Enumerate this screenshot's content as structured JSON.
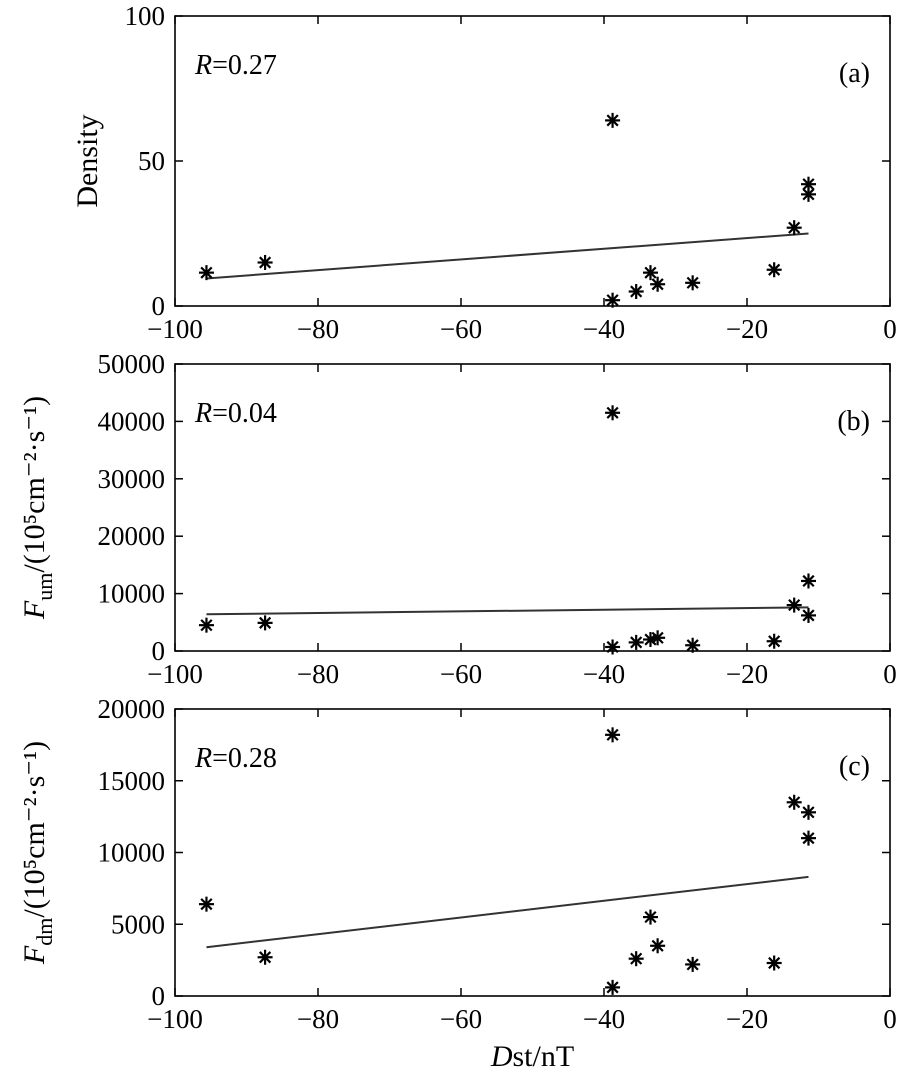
{
  "chart_data": [
    {
      "type": "scatter",
      "panel_label": "(a)",
      "r_label": "R",
      "r_value": "=0.27",
      "ylabel": "Density",
      "ylabel_sub": "",
      "ylabel_rest": "",
      "xlim": [
        -100,
        0
      ],
      "ylim": [
        0,
        100
      ],
      "xticks": [
        -100,
        -80,
        -60,
        -40,
        -20,
        0
      ],
      "yticks": [
        0,
        50,
        100
      ],
      "points": [
        [
          -95.6,
          11.5
        ],
        [
          -87.4,
          15.0
        ],
        [
          -38.8,
          64.0
        ],
        [
          -38.8,
          2.0
        ],
        [
          -35.5,
          5.0
        ],
        [
          -33.5,
          11.5
        ],
        [
          -32.5,
          7.5
        ],
        [
          -27.6,
          8.0
        ],
        [
          -16.2,
          12.5
        ],
        [
          -13.4,
          27.0
        ],
        [
          -11.4,
          42.0
        ],
        [
          -11.4,
          38.5
        ]
      ],
      "fit": {
        "x": [
          -95.6,
          -11.4
        ],
        "y": [
          9.5,
          25.0
        ]
      }
    },
    {
      "type": "scatter",
      "panel_label": "(b)",
      "r_label": "R",
      "r_value": "=0.04",
      "ylabel": "F",
      "ylabel_sub": "um",
      "ylabel_rest": "/(10⁵cm⁻²·s⁻¹)",
      "xlim": [
        -100,
        0
      ],
      "ylim": [
        0,
        50000
      ],
      "xticks": [
        -100,
        -80,
        -60,
        -40,
        -20,
        0
      ],
      "yticks": [
        0,
        10000,
        20000,
        30000,
        40000,
        50000
      ],
      "points": [
        [
          -95.6,
          4500
        ],
        [
          -87.4,
          4900
        ],
        [
          -38.8,
          41500
        ],
        [
          -38.8,
          700
        ],
        [
          -35.5,
          1500
        ],
        [
          -33.5,
          2000
        ],
        [
          -32.5,
          2300
        ],
        [
          -27.6,
          1000
        ],
        [
          -16.2,
          1700
        ],
        [
          -13.4,
          8000
        ],
        [
          -11.4,
          12200
        ],
        [
          -11.4,
          6200
        ]
      ],
      "fit": {
        "x": [
          -95.6,
          -11.4
        ],
        "y": [
          6400,
          7600
        ]
      }
    },
    {
      "type": "scatter",
      "panel_label": "(c)",
      "r_label": "R",
      "r_value": "=0.28",
      "ylabel": "F",
      "ylabel_sub": "dm",
      "ylabel_rest": "/(10⁵cm⁻²·s⁻¹)",
      "xlabel_italic": "D",
      "xlabel_rest": "st/nT",
      "xlim": [
        -100,
        0
      ],
      "ylim": [
        0,
        20000
      ],
      "xticks": [
        -100,
        -80,
        -60,
        -40,
        -20,
        0
      ],
      "yticks": [
        0,
        5000,
        10000,
        15000,
        20000
      ],
      "points": [
        [
          -95.6,
          6400
        ],
        [
          -87.4,
          2700
        ],
        [
          -38.8,
          18200
        ],
        [
          -38.8,
          600
        ],
        [
          -35.5,
          2600
        ],
        [
          -33.5,
          5500
        ],
        [
          -32.5,
          3500
        ],
        [
          -27.6,
          2200
        ],
        [
          -16.2,
          2300
        ],
        [
          -13.4,
          13500
        ],
        [
          -11.4,
          12800
        ],
        [
          -11.4,
          11000
        ]
      ],
      "fit": {
        "x": [
          -95.6,
          -11.4
        ],
        "y": [
          3400,
          8300
        ]
      }
    }
  ]
}
